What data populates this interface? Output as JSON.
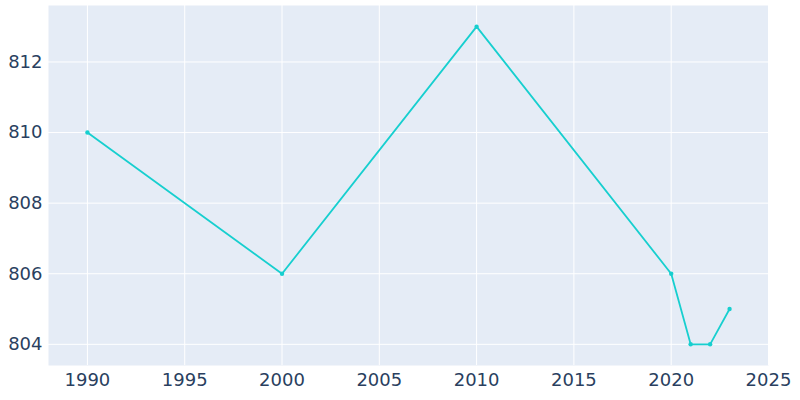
{
  "chart_data": {
    "type": "line",
    "x": [
      1990,
      2000,
      2010,
      2020,
      2021,
      2022,
      2023
    ],
    "values": [
      810,
      806,
      813,
      806,
      804,
      804,
      805
    ],
    "color": "#17cfcf",
    "marker": "circle",
    "xlim": [
      1988,
      2025
    ],
    "xticks": [
      1990,
      1995,
      2000,
      2005,
      2010,
      2015,
      2020,
      2025
    ],
    "ylim": [
      803.4,
      813.6
    ],
    "yticks": [
      804,
      806,
      808,
      810,
      812
    ],
    "grid": true
  }
}
